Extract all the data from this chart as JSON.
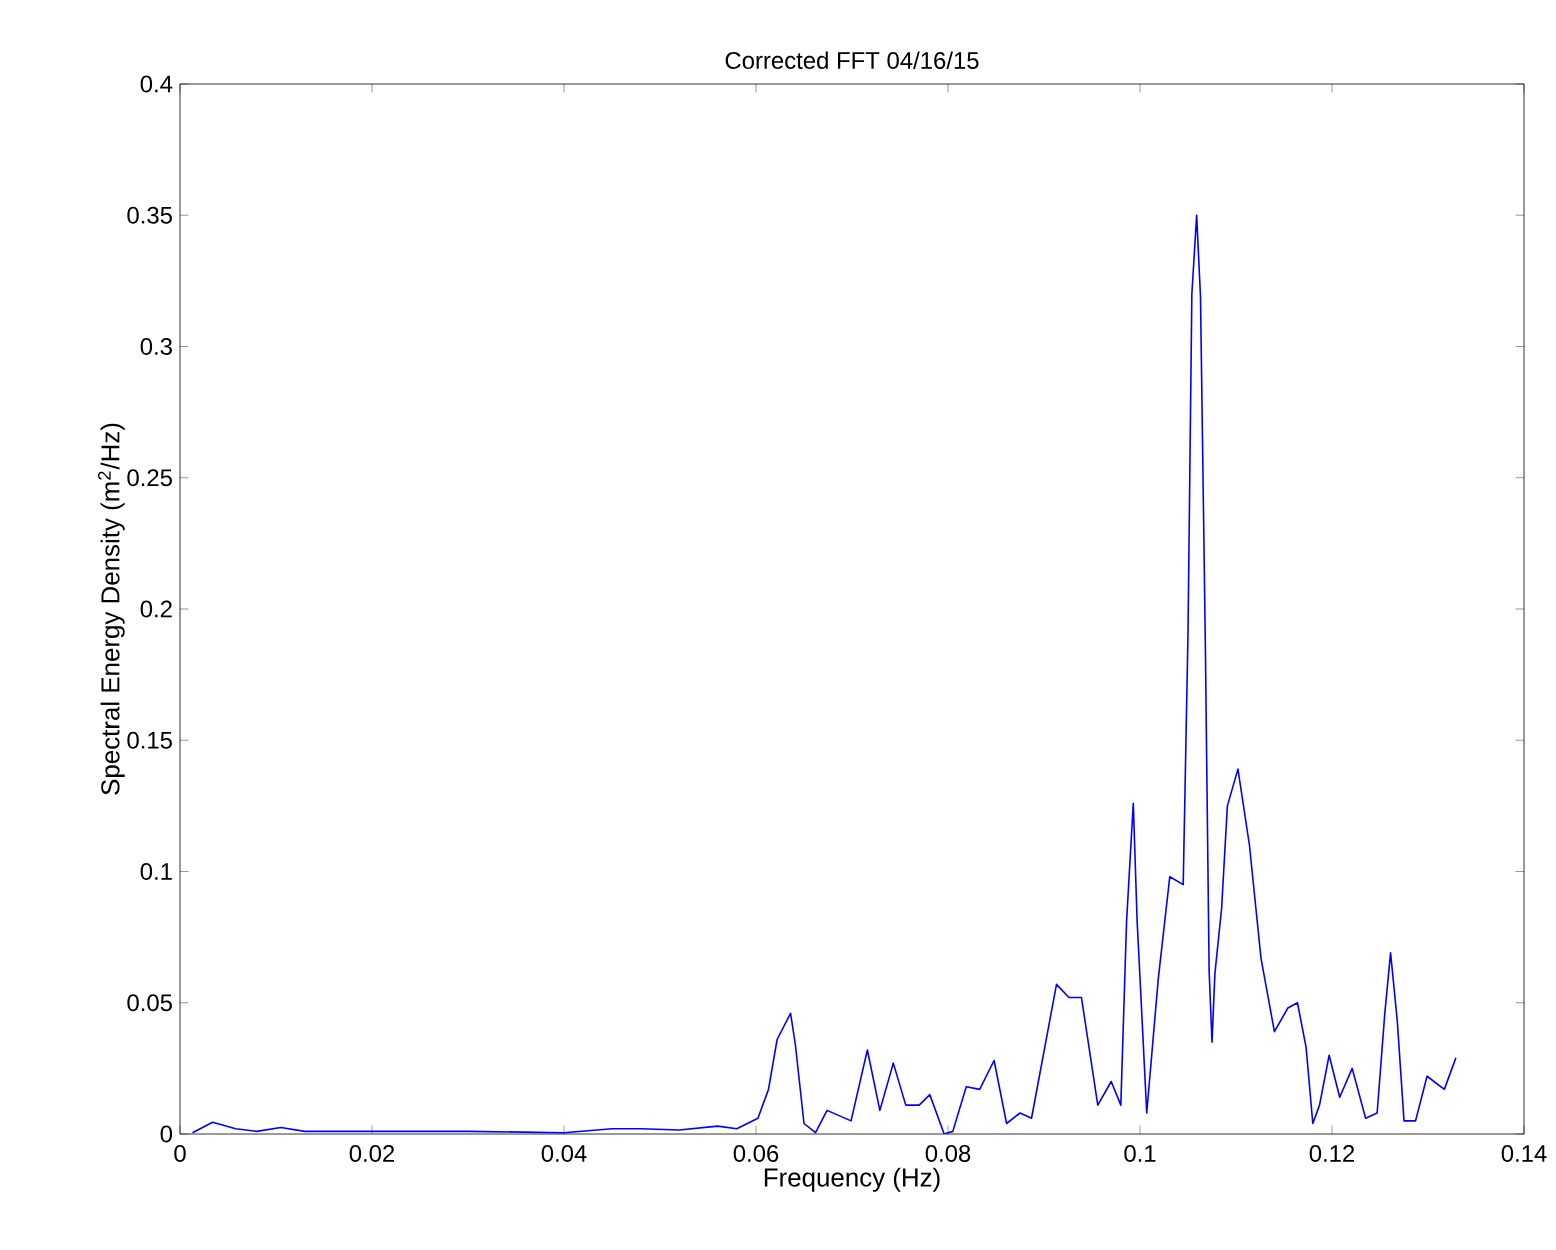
{
  "chart_data": {
    "type": "line",
    "title": "Corrected FFT 04/16/15",
    "xlabel": "Frequency (Hz)",
    "ylabel": "Spectral Energy Density (m$^{2}$/Hz)",
    "series": [
      {
        "color": "#0000ff",
        "x": [
          0.0013,
          0.0034,
          0.0058,
          0.008,
          0.0105,
          0.013,
          0.02,
          0.03,
          0.04,
          0.045,
          0.048,
          0.052,
          0.056,
          0.058,
          0.0602,
          0.0613,
          0.0622,
          0.0636,
          0.0641,
          0.065,
          0.0662,
          0.0674,
          0.0699,
          0.0716,
          0.0729,
          0.0743,
          0.0756,
          0.077,
          0.0781,
          0.0796,
          0.0805,
          0.0819,
          0.0833,
          0.0848,
          0.0861,
          0.0875,
          0.0887,
          0.0913,
          0.0926,
          0.0939,
          0.0956,
          0.097,
          0.098,
          0.0986,
          0.0993,
          0.0997,
          0.1001,
          0.1007,
          0.1019,
          0.1031,
          0.1045,
          0.105,
          0.1054,
          0.1059,
          0.1063,
          0.1068,
          0.1072,
          0.1075,
          0.1078,
          0.1085,
          0.1091,
          0.1102,
          0.1114,
          0.1126,
          0.114,
          0.1154,
          0.1164,
          0.1173,
          0.118,
          0.1187,
          0.1197,
          0.1208,
          0.1221,
          0.1235,
          0.1247,
          0.1255,
          0.1261,
          0.1268,
          0.1275,
          0.1287,
          0.1299,
          0.1317,
          0.1329
        ],
        "values": [
          0.0005,
          0.0045,
          0.002,
          0.001,
          0.0025,
          0.001,
          0.001,
          0.001,
          0.0005,
          0.002,
          0.002,
          0.0015,
          0.003,
          0.002,
          0.006,
          0.017,
          0.036,
          0.046,
          0.034,
          0.004,
          0.0005,
          0.009,
          0.005,
          0.032,
          0.009,
          0.027,
          0.011,
          0.011,
          0.015,
          0.0,
          0.001,
          0.018,
          0.017,
          0.028,
          0.004,
          0.008,
          0.006,
          0.057,
          0.052,
          0.052,
          0.011,
          0.02,
          0.011,
          0.081,
          0.126,
          0.081,
          0.052,
          0.008,
          0.059,
          0.098,
          0.095,
          0.191,
          0.32,
          0.35,
          0.319,
          0.188,
          0.062,
          0.035,
          0.061,
          0.086,
          0.125,
          0.139,
          0.11,
          0.067,
          0.039,
          0.048,
          0.05,
          0.033,
          0.004,
          0.011,
          0.03,
          0.014,
          0.025,
          0.006,
          0.008,
          0.046,
          0.069,
          0.043,
          0.005,
          0.005,
          0.022,
          0.017,
          0.029
        ]
      }
    ],
    "xlim": [
      0,
      0.14
    ],
    "xticks": [
      0,
      0.02,
      0.04,
      0.06,
      0.08,
      0.1,
      0.12,
      0.14
    ],
    "ylim": [
      0,
      0.4
    ],
    "yticks": [
      0,
      0.05,
      0.1,
      0.15,
      0.2,
      0.25,
      0.3,
      0.35,
      0.4
    ],
    "marker": "none",
    "line_style": "solid"
  }
}
